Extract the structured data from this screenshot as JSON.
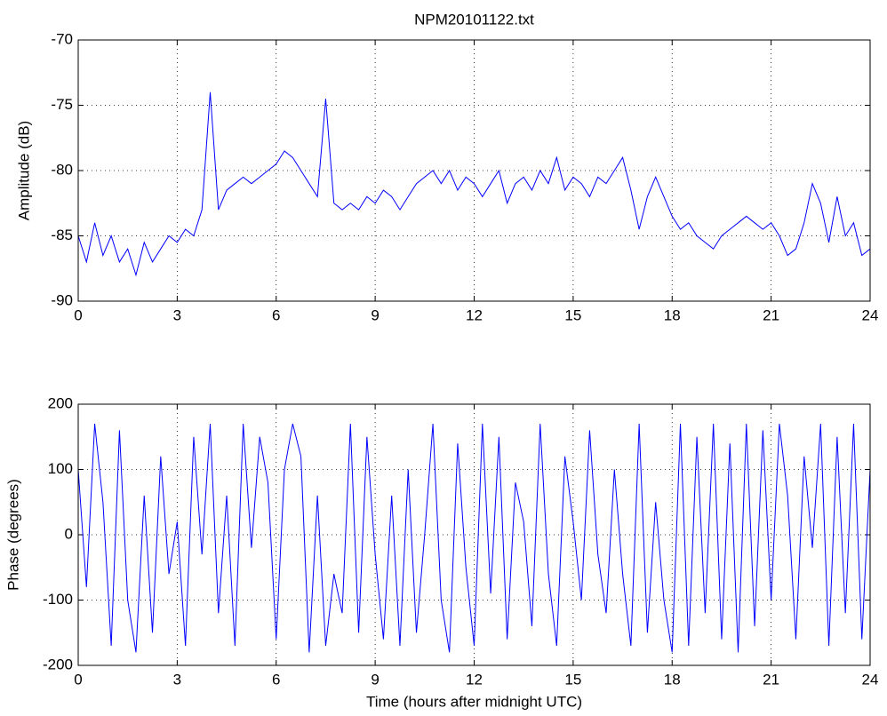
{
  "chart_data": [
    {
      "type": "line",
      "title": "NPM20101122.txt",
      "y_label": "Amplitude (dB)",
      "x": [
        0,
        0.25,
        0.5,
        0.75,
        1,
        1.25,
        1.5,
        1.75,
        2,
        2.25,
        2.5,
        2.75,
        3,
        3.25,
        3.5,
        3.75,
        4,
        4.25,
        4.5,
        4.75,
        5,
        5.25,
        5.5,
        5.75,
        6,
        6.25,
        6.5,
        6.75,
        7,
        7.25,
        7.5,
        7.75,
        8,
        8.25,
        8.5,
        8.75,
        9,
        9.25,
        9.5,
        9.75,
        10,
        10.25,
        10.5,
        10.75,
        11,
        11.25,
        11.5,
        11.75,
        12,
        12.25,
        12.5,
        12.75,
        13,
        13.25,
        13.5,
        13.75,
        14,
        14.25,
        14.5,
        14.75,
        15,
        15.25,
        15.5,
        15.75,
        16,
        16.25,
        16.5,
        16.75,
        17,
        17.25,
        17.5,
        17.75,
        18,
        18.25,
        18.5,
        18.75,
        19,
        19.25,
        19.5,
        19.75,
        20,
        20.25,
        20.5,
        20.75,
        21,
        21.25,
        21.5,
        21.75,
        22,
        22.25,
        22.5,
        22.75,
        23,
        23.25,
        23.5,
        23.75,
        24
      ],
      "series": [
        {
          "color": "#0000ff",
          "values": [
            -85,
            -87,
            -84,
            -86.5,
            -85,
            -87,
            -86,
            -88,
            -85.5,
            -87,
            -86,
            -85,
            -85.5,
            -84.5,
            -85,
            -83,
            -74,
            -83,
            -81.5,
            -81,
            -80.5,
            -81,
            -80.5,
            -80,
            -79.5,
            -78.5,
            -79,
            -80,
            -81,
            -82,
            -74.5,
            -82.5,
            -83,
            -82.5,
            -83,
            -82,
            -82.5,
            -81.5,
            -82,
            -83,
            -82,
            -81,
            -80.5,
            -80,
            -81,
            -80,
            -81.5,
            -80.5,
            -81,
            -82,
            -81,
            -80,
            -82.5,
            -81,
            -80.5,
            -81.5,
            -80,
            -81,
            -79,
            -81.5,
            -80.5,
            -81,
            -82,
            -80.5,
            -81,
            -80,
            -79,
            -81.5,
            -84.5,
            -82,
            -80.5,
            -82,
            -83.5,
            -84.5,
            -84,
            -85,
            -85.5,
            -86,
            -85,
            -84.5,
            -84,
            -83.5,
            -84,
            -84.5,
            -84,
            -85,
            -86.5,
            -86,
            -84,
            -81,
            -82.5,
            -85.5,
            -82,
            -85,
            -84,
            -86.5,
            -86
          ]
        }
      ],
      "xlim": [
        0,
        24
      ],
      "xticks": [
        0,
        3,
        6,
        9,
        12,
        15,
        18,
        21,
        24
      ],
      "ylim": [
        -90,
        -70
      ],
      "yticks": [
        -90,
        -85,
        -80,
        -75,
        -70
      ],
      "grid": true
    },
    {
      "type": "line",
      "x_label": "Time (hours after midnight UTC)",
      "y_label": "Phase (degrees)",
      "x": [
        0,
        0.25,
        0.5,
        0.75,
        1,
        1.25,
        1.5,
        1.75,
        2,
        2.25,
        2.5,
        2.75,
        3,
        3.25,
        3.5,
        3.75,
        4,
        4.25,
        4.5,
        4.75,
        5,
        5.25,
        5.5,
        5.75,
        6,
        6.25,
        6.5,
        6.75,
        7,
        7.25,
        7.5,
        7.75,
        8,
        8.25,
        8.5,
        8.75,
        9,
        9.25,
        9.5,
        9.75,
        10,
        10.25,
        10.5,
        10.75,
        11,
        11.25,
        11.5,
        11.75,
        12,
        12.25,
        12.5,
        12.75,
        13,
        13.25,
        13.5,
        13.75,
        14,
        14.25,
        14.5,
        14.75,
        15,
        15.25,
        15.5,
        15.75,
        16,
        16.25,
        16.5,
        16.75,
        17,
        17.25,
        17.5,
        17.75,
        18,
        18.25,
        18.5,
        18.75,
        19,
        19.25,
        19.5,
        19.75,
        20,
        20.25,
        20.5,
        20.75,
        21,
        21.25,
        21.5,
        21.75,
        22,
        22.25,
        22.5,
        22.75,
        23,
        23.25,
        23.5,
        23.75,
        24
      ],
      "series": [
        {
          "color": "#0000ff",
          "values": [
            100,
            -80,
            170,
            50,
            -170,
            160,
            -100,
            -180,
            60,
            -150,
            120,
            -60,
            20,
            -170,
            150,
            -30,
            170,
            -120,
            60,
            -170,
            170,
            -20,
            150,
            80,
            -160,
            100,
            170,
            120,
            -180,
            60,
            -170,
            -60,
            -120,
            170,
            -150,
            150,
            -30,
            -160,
            60,
            -170,
            100,
            -150,
            0,
            170,
            -100,
            -180,
            140,
            -50,
            -170,
            170,
            -90,
            150,
            -160,
            80,
            20,
            -140,
            170,
            -60,
            -170,
            120,
            20,
            -100,
            160,
            -30,
            -120,
            100,
            -60,
            -170,
            170,
            -150,
            50,
            -100,
            -180,
            170,
            -170,
            150,
            -120,
            170,
            -160,
            140,
            -180,
            170,
            -140,
            160,
            -100,
            170,
            60,
            -160,
            120,
            -20,
            170,
            -170,
            150,
            -120,
            170,
            -160,
            100
          ]
        }
      ],
      "xlim": [
        0,
        24
      ],
      "xticks": [
        0,
        3,
        6,
        9,
        12,
        15,
        18,
        21,
        24
      ],
      "ylim": [
        -200,
        200
      ],
      "yticks": [
        -200,
        -100,
        0,
        100,
        200
      ],
      "grid": true
    }
  ]
}
